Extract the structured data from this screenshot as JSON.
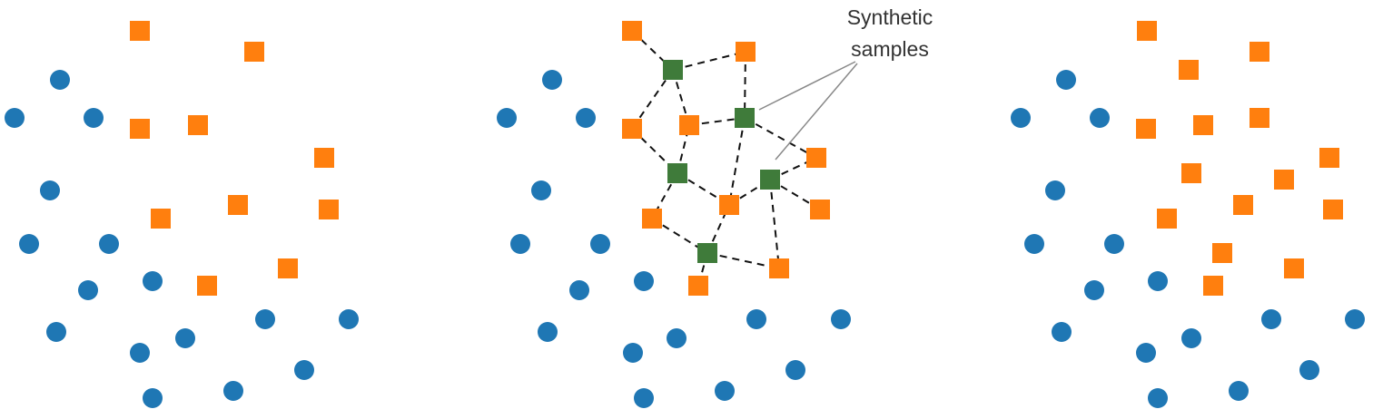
{
  "colors": {
    "majority": "#1f77b4",
    "minority": "#ff7f0e",
    "synthetic": "#3f7b3a",
    "edge": "#111111",
    "pointer": "#888888"
  },
  "annotation": {
    "line1": "Synthetic",
    "line2": "samples"
  },
  "panels": [
    {
      "id": "original",
      "majority": [
        [
          66,
          88
        ],
        [
          16,
          130
        ],
        [
          103,
          130
        ],
        [
          55,
          210
        ],
        [
          32,
          269
        ],
        [
          120,
          269
        ],
        [
          97,
          320
        ],
        [
          168,
          310
        ],
        [
          62,
          366
        ],
        [
          154,
          389
        ],
        [
          204,
          373
        ],
        [
          292,
          352
        ],
        [
          384,
          352
        ],
        [
          335,
          408
        ],
        [
          168,
          439
        ],
        [
          257,
          431
        ]
      ],
      "minority": [
        [
          154,
          34
        ],
        [
          280,
          57
        ],
        [
          154,
          142
        ],
        [
          218,
          138
        ],
        [
          357,
          174
        ],
        [
          262,
          226
        ],
        [
          177,
          241
        ],
        [
          362,
          231
        ],
        [
          317,
          296
        ],
        [
          228,
          315
        ]
      ],
      "synthetic": [],
      "edges": []
    },
    {
      "id": "smote",
      "majority": [
        [
          608,
          88
        ],
        [
          558,
          130
        ],
        [
          645,
          130
        ],
        [
          596,
          210
        ],
        [
          573,
          269
        ],
        [
          661,
          269
        ],
        [
          638,
          320
        ],
        [
          709,
          310
        ],
        [
          603,
          366
        ],
        [
          697,
          389
        ],
        [
          745,
          373
        ],
        [
          833,
          352
        ],
        [
          926,
          352
        ],
        [
          876,
          408
        ],
        [
          709,
          439
        ],
        [
          798,
          431
        ]
      ],
      "minority": [
        [
          696,
          34
        ],
        [
          821,
          57
        ],
        [
          696,
          142
        ],
        [
          759,
          138
        ],
        [
          899,
          174
        ],
        [
          803,
          226
        ],
        [
          718,
          241
        ],
        [
          903,
          231
        ],
        [
          858,
          296
        ],
        [
          769,
          315
        ]
      ],
      "synthetic": [
        [
          741,
          77
        ],
        [
          820,
          130
        ],
        [
          746,
          191
        ],
        [
          848,
          198
        ],
        [
          779,
          279
        ]
      ],
      "edges": [
        [
          [
            696,
            34
          ],
          [
            741,
            77
          ]
        ],
        [
          [
            741,
            77
          ],
          [
            821,
            57
          ]
        ],
        [
          [
            741,
            77
          ],
          [
            696,
            142
          ]
        ],
        [
          [
            741,
            77
          ],
          [
            759,
            138
          ]
        ],
        [
          [
            821,
            57
          ],
          [
            820,
            130
          ]
        ],
        [
          [
            759,
            138
          ],
          [
            820,
            130
          ]
        ],
        [
          [
            820,
            130
          ],
          [
            803,
            226
          ]
        ],
        [
          [
            820,
            130
          ],
          [
            899,
            174
          ]
        ],
        [
          [
            696,
            142
          ],
          [
            746,
            191
          ]
        ],
        [
          [
            746,
            191
          ],
          [
            759,
            138
          ]
        ],
        [
          [
            746,
            191
          ],
          [
            718,
            241
          ]
        ],
        [
          [
            746,
            191
          ],
          [
            803,
            226
          ]
        ],
        [
          [
            803,
            226
          ],
          [
            848,
            198
          ]
        ],
        [
          [
            848,
            198
          ],
          [
            899,
            174
          ]
        ],
        [
          [
            848,
            198
          ],
          [
            903,
            231
          ]
        ],
        [
          [
            848,
            198
          ],
          [
            858,
            296
          ]
        ],
        [
          [
            718,
            241
          ],
          [
            779,
            279
          ]
        ],
        [
          [
            779,
            279
          ],
          [
            803,
            226
          ]
        ],
        [
          [
            779,
            279
          ],
          [
            858,
            296
          ]
        ],
        [
          [
            779,
            279
          ],
          [
            769,
            315
          ]
        ]
      ]
    },
    {
      "id": "result",
      "majority": [
        [
          1174,
          88
        ],
        [
          1124,
          130
        ],
        [
          1211,
          130
        ],
        [
          1162,
          210
        ],
        [
          1139,
          269
        ],
        [
          1227,
          269
        ],
        [
          1205,
          320
        ],
        [
          1275,
          310
        ],
        [
          1169,
          366
        ],
        [
          1262,
          389
        ],
        [
          1312,
          373
        ],
        [
          1400,
          352
        ],
        [
          1492,
          352
        ],
        [
          1442,
          408
        ],
        [
          1275,
          439
        ],
        [
          1364,
          431
        ]
      ],
      "minority": [
        [
          1263,
          34
        ],
        [
          1387,
          57
        ],
        [
          1309,
          77
        ],
        [
          1262,
          142
        ],
        [
          1325,
          138
        ],
        [
          1387,
          130
        ],
        [
          1312,
          191
        ],
        [
          1414,
          198
        ],
        [
          1464,
          174
        ],
        [
          1369,
          226
        ],
        [
          1285,
          241
        ],
        [
          1468,
          231
        ],
        [
          1346,
          279
        ],
        [
          1425,
          296
        ],
        [
          1336,
          315
        ]
      ],
      "synthetic": [],
      "edges": []
    }
  ]
}
